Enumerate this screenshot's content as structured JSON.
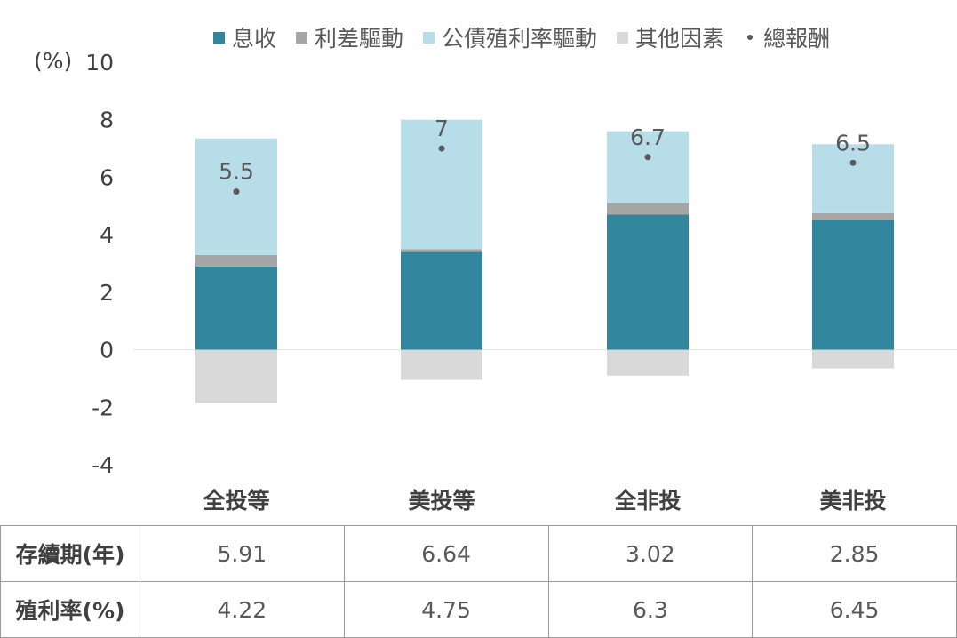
{
  "unit_label": "(%)",
  "legend": [
    {
      "label": "息收",
      "color": "#31859c",
      "kind": "swatch"
    },
    {
      "label": "利差驅動",
      "color": "#a6a6a6",
      "kind": "swatch"
    },
    {
      "label": "公債殖利率驅動",
      "color": "#b7dee8",
      "kind": "swatch"
    },
    {
      "label": "其他因素",
      "color": "#d9d9d9",
      "kind": "swatch"
    },
    {
      "label": "總報酬",
      "color": "#595959",
      "kind": "dot"
    }
  ],
  "chart_data": {
    "type": "bar",
    "stacked": true,
    "categories": [
      "全投等",
      "美投等",
      "全非投",
      "美非投"
    ],
    "ylim": [
      -4,
      10
    ],
    "yticks": [
      -4,
      -2,
      0,
      2,
      4,
      6,
      8,
      10
    ],
    "series": [
      {
        "name": "息收",
        "color": "#31859c",
        "values": [
          2.9,
          3.4,
          4.7,
          4.5
        ]
      },
      {
        "name": "利差驅動",
        "color": "#a6a6a6",
        "values": [
          0.4,
          0.1,
          0.4,
          0.25
        ]
      },
      {
        "name": "公債殖利率驅動",
        "color": "#b7dee8",
        "values": [
          4.05,
          4.5,
          2.5,
          2.4
        ]
      },
      {
        "name": "其他因素",
        "color": "#d9d9d9",
        "values": [
          -1.85,
          -1.05,
          -0.9,
          -0.65
        ]
      }
    ],
    "total": {
      "name": "總報酬",
      "color": "#595959",
      "values": [
        5.5,
        7,
        6.7,
        6.5
      ],
      "labels": [
        "5.5",
        "7",
        "6.7",
        "6.5"
      ]
    }
  },
  "table": {
    "rows": [
      {
        "label": "存續期(年)",
        "cells": [
          {
            "text": "5.91",
            "highlight": true
          },
          {
            "text": "6.64",
            "highlight": true
          },
          {
            "text": "3.02",
            "highlight": false
          },
          {
            "text": "2.85",
            "highlight": false
          }
        ]
      },
      {
        "label": "殖利率(%)",
        "cells": [
          {
            "text": "4.22",
            "highlight": false
          },
          {
            "text": "4.75",
            "highlight": false
          },
          {
            "text": "6.3",
            "highlight": true
          },
          {
            "text": "6.45",
            "highlight": true
          }
        ]
      }
    ]
  }
}
